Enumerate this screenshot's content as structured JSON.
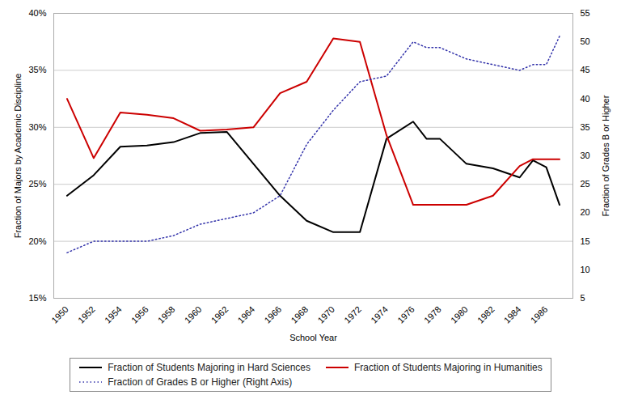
{
  "chart_data": {
    "type": "line",
    "xlabel": "School Year",
    "ylabel": "Fraction of Majors by Academic Discipline",
    "y2label": "Fraction of Grades B or Higher",
    "x": [
      1950,
      1952,
      1954,
      1956,
      1958,
      1960,
      1962,
      1964,
      1966,
      1968,
      1970,
      1972,
      1974,
      1976,
      1977,
      1978,
      1980,
      1982,
      1984,
      1985,
      1986,
      1987
    ],
    "series": [
      {
        "name": "Fraction of Students Majoring in Hard Sciences",
        "color": "#000000",
        "line_style": "solid",
        "values": [
          0.24,
          0.258,
          0.283,
          0.284,
          0.287,
          0.295,
          0.296,
          0.268,
          0.24,
          0.218,
          0.208,
          0.208,
          0.29,
          0.305,
          0.29,
          0.29,
          0.268,
          0.264,
          0.256,
          0.271,
          0.265,
          0.232
        ]
      },
      {
        "name": "Fraction of Students Majoring in Humanities",
        "color": "#cc0000",
        "line_style": "solid",
        "values": [
          0.325,
          0.273,
          0.313,
          0.311,
          0.308,
          0.297,
          0.298,
          0.3,
          0.33,
          0.34,
          0.378,
          0.375,
          0.293,
          0.232,
          0.232,
          0.232,
          0.232,
          0.24,
          0.266,
          0.272,
          0.272,
          0.272
        ]
      },
      {
        "name": "Fraction of Grades B or Higher (Right Axis)",
        "color": "#3333aa",
        "line_style": "dotted",
        "axis": "y2",
        "values": [
          13,
          15,
          15,
          15,
          16,
          18,
          19,
          20,
          23,
          32,
          38,
          43,
          44,
          50,
          49,
          49,
          47,
          46,
          45,
          46,
          46,
          51
        ]
      }
    ],
    "xlim": [
      1949,
      1988
    ],
    "xticks": [
      1950,
      1952,
      1954,
      1956,
      1958,
      1960,
      1962,
      1964,
      1966,
      1968,
      1970,
      1972,
      1974,
      1976,
      1978,
      1980,
      1982,
      1984,
      1986
    ],
    "ylim": [
      0.15,
      0.4
    ],
    "yticks": [
      {
        "value": 0.15,
        "label": "15%"
      },
      {
        "value": 0.2,
        "label": "20%"
      },
      {
        "value": 0.25,
        "label": "25%"
      },
      {
        "value": 0.3,
        "label": "30%"
      },
      {
        "value": 0.35,
        "label": "35%"
      },
      {
        "value": 0.4,
        "label": "40%"
      }
    ],
    "y2lim": [
      5,
      55
    ],
    "y2ticks": [
      5,
      10,
      15,
      20,
      25,
      30,
      35,
      40,
      45,
      50,
      55
    ],
    "grid": true,
    "legend": "bottom"
  }
}
